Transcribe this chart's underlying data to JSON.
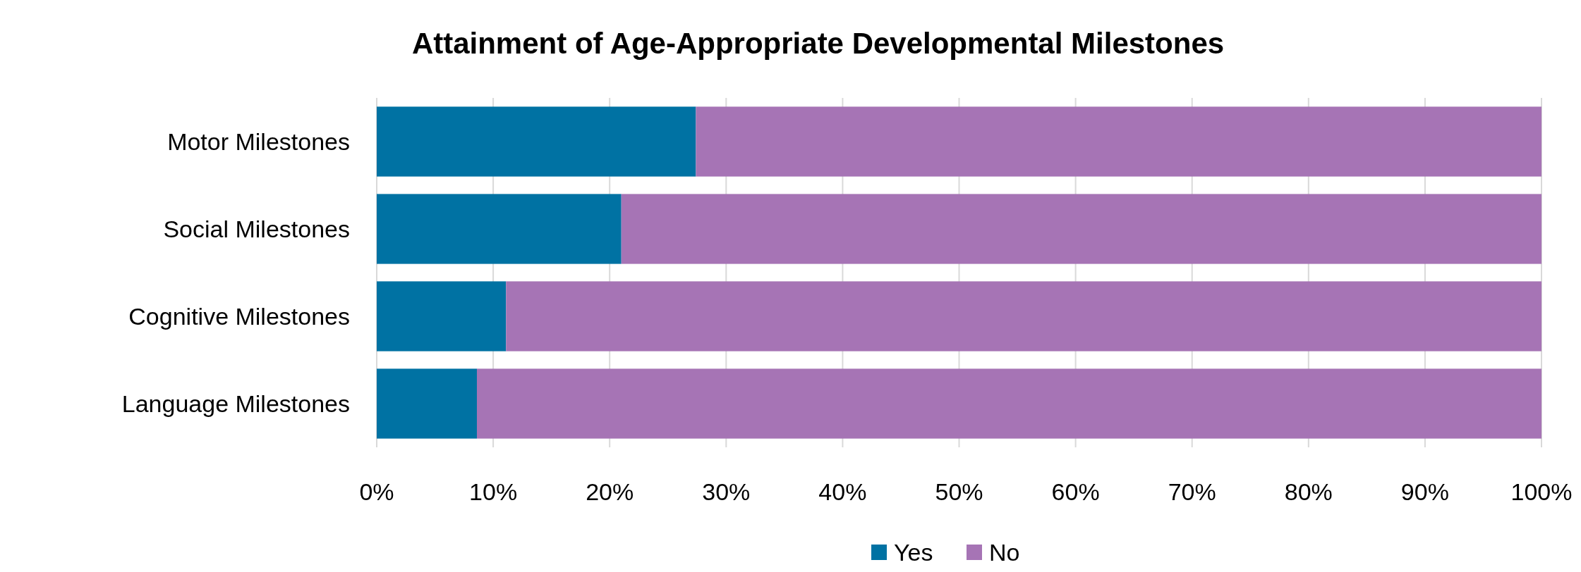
{
  "chart_data": {
    "type": "bar",
    "orientation": "horizontal",
    "stacked": true,
    "title": "Attainment of Age-Appropriate Developmental Milestones",
    "categories": [
      "Motor Milestones",
      "Social Milestones",
      "Cognitive Milestones",
      "Language Milestones"
    ],
    "series": [
      {
        "name": "Yes",
        "color": "#0072a3",
        "values": [
          27.4,
          21.0,
          11.1,
          8.6
        ]
      },
      {
        "name": "No",
        "color": "#a674b5",
        "values": [
          72.6,
          79.0,
          88.9,
          91.4
        ]
      }
    ],
    "xlim": [
      0,
      100
    ],
    "xticks": [
      {
        "value": 0,
        "label": "0%"
      },
      {
        "value": 10,
        "label": "10%"
      },
      {
        "value": 20,
        "label": "20%"
      },
      {
        "value": 30,
        "label": "30%"
      },
      {
        "value": 40,
        "label": "40%"
      },
      {
        "value": 50,
        "label": "50%"
      },
      {
        "value": 60,
        "label": "60%"
      },
      {
        "value": 70,
        "label": "70%"
      },
      {
        "value": 80,
        "label": "80%"
      },
      {
        "value": 90,
        "label": "90%"
      },
      {
        "value": 100,
        "label": "100%"
      }
    ],
    "grid": "x",
    "legend": "bottom"
  }
}
